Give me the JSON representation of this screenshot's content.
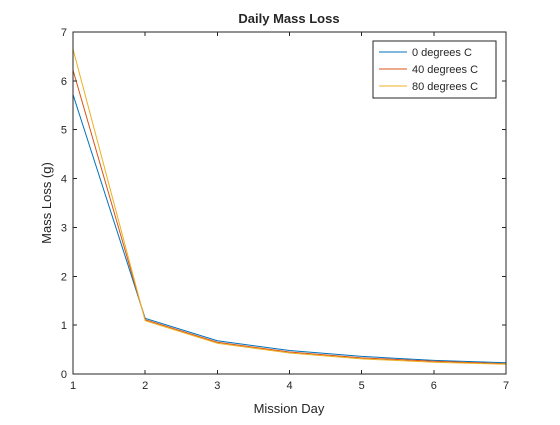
{
  "chart_data": {
    "type": "line",
    "title": "Daily Mass Loss",
    "xlabel": "Mission Day",
    "ylabel": "Mass Loss (g)",
    "xlim": [
      1,
      7
    ],
    "ylim": [
      0,
      7
    ],
    "xticks": [
      1,
      2,
      3,
      4,
      5,
      6,
      7
    ],
    "yticks": [
      0,
      1,
      2,
      3,
      4,
      5,
      6,
      7
    ],
    "grid": false,
    "legend_position": "top-right",
    "x": [
      1,
      2,
      3,
      4,
      5,
      6,
      7
    ],
    "series": [
      {
        "name": "0 degrees C",
        "color": "#0072BD",
        "values": [
          5.72,
          1.14,
          0.68,
          0.48,
          0.36,
          0.28,
          0.23
        ]
      },
      {
        "name": "40 degrees C",
        "color": "#D95319",
        "values": [
          6.22,
          1.11,
          0.65,
          0.45,
          0.33,
          0.26,
          0.21
        ]
      },
      {
        "name": "80 degrees C",
        "color": "#EDB120",
        "values": [
          6.65,
          1.09,
          0.63,
          0.43,
          0.31,
          0.24,
          0.2
        ]
      }
    ]
  }
}
